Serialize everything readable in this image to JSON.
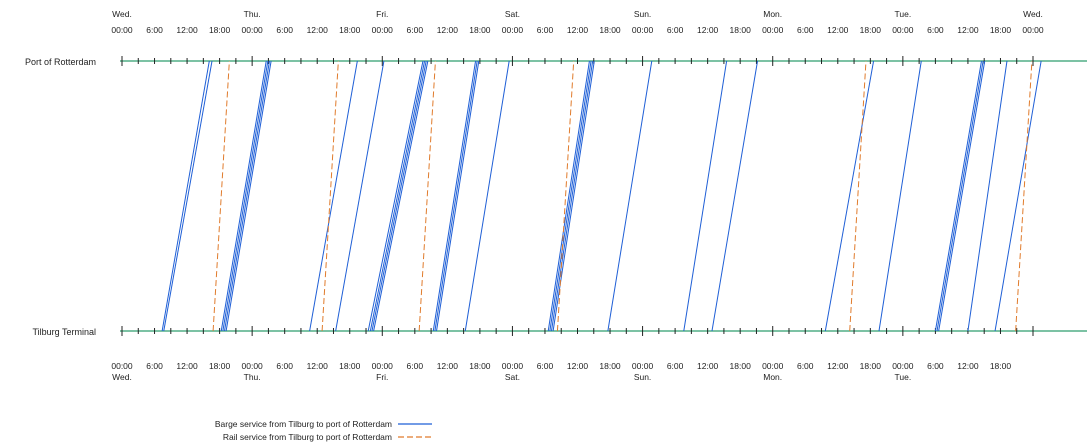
{
  "chart_data": {
    "type": "line",
    "title": "",
    "xlabel": "",
    "ylabel": "",
    "x_unit": "hours",
    "xlim": [
      0,
      168
    ],
    "stations": [
      "Port of Rotterdam",
      "Tilburg Terminal"
    ],
    "top_axis_ticks": [
      {
        "value": 0,
        "time": "00:00",
        "day": "Wed."
      },
      {
        "value": 6,
        "time": "6:00",
        "day": ""
      },
      {
        "value": 12,
        "time": "12:00",
        "day": ""
      },
      {
        "value": 18,
        "time": "18:00",
        "day": ""
      },
      {
        "value": 24,
        "time": "00:00",
        "day": "Thu."
      },
      {
        "value": 30,
        "time": "6:00",
        "day": ""
      },
      {
        "value": 36,
        "time": "12:00",
        "day": ""
      },
      {
        "value": 42,
        "time": "18:00",
        "day": ""
      },
      {
        "value": 48,
        "time": "00:00",
        "day": "Fri."
      },
      {
        "value": 54,
        "time": "6:00",
        "day": ""
      },
      {
        "value": 60,
        "time": "12:00",
        "day": ""
      },
      {
        "value": 66,
        "time": "18:00",
        "day": ""
      },
      {
        "value": 72,
        "time": "00:00",
        "day": "Sat."
      },
      {
        "value": 78,
        "time": "6:00",
        "day": ""
      },
      {
        "value": 84,
        "time": "12:00",
        "day": ""
      },
      {
        "value": 90,
        "time": "18:00",
        "day": ""
      },
      {
        "value": 96,
        "time": "00:00",
        "day": "Sun."
      },
      {
        "value": 102,
        "time": "6:00",
        "day": ""
      },
      {
        "value": 108,
        "time": "12:00",
        "day": ""
      },
      {
        "value": 114,
        "time": "18:00",
        "day": ""
      },
      {
        "value": 120,
        "time": "00:00",
        "day": "Mon."
      },
      {
        "value": 126,
        "time": "6:00",
        "day": ""
      },
      {
        "value": 132,
        "time": "12:00",
        "day": ""
      },
      {
        "value": 138,
        "time": "18:00",
        "day": ""
      },
      {
        "value": 144,
        "time": "00:00",
        "day": "Tue."
      },
      {
        "value": 150,
        "time": "6:00",
        "day": ""
      },
      {
        "value": 156,
        "time": "12:00",
        "day": ""
      },
      {
        "value": 162,
        "time": "18:00",
        "day": ""
      },
      {
        "value": 168,
        "time": "00:00",
        "day": "Wed."
      }
    ],
    "bottom_axis_ticks": [
      {
        "value": 0,
        "time": "00:00",
        "day": "Wed."
      },
      {
        "value": 6,
        "time": "6:00",
        "day": ""
      },
      {
        "value": 12,
        "time": "12:00",
        "day": ""
      },
      {
        "value": 18,
        "time": "18:00",
        "day": ""
      },
      {
        "value": 24,
        "time": "00:00",
        "day": "Thu."
      },
      {
        "value": 30,
        "time": "6:00",
        "day": ""
      },
      {
        "value": 36,
        "time": "12:00",
        "day": ""
      },
      {
        "value": 42,
        "time": "18:00",
        "day": ""
      },
      {
        "value": 48,
        "time": "00:00",
        "day": "Fri."
      },
      {
        "value": 54,
        "time": "6:00",
        "day": ""
      },
      {
        "value": 60,
        "time": "12:00",
        "day": ""
      },
      {
        "value": 66,
        "time": "18:00",
        "day": ""
      },
      {
        "value": 72,
        "time": "00:00",
        "day": "Sat."
      },
      {
        "value": 78,
        "time": "6:00",
        "day": ""
      },
      {
        "value": 84,
        "time": "12:00",
        "day": ""
      },
      {
        "value": 90,
        "time": "18:00",
        "day": ""
      },
      {
        "value": 96,
        "time": "00:00",
        "day": "Sun."
      },
      {
        "value": 102,
        "time": "6:00",
        "day": ""
      },
      {
        "value": 108,
        "time": "12:00",
        "day": ""
      },
      {
        "value": 114,
        "time": "18:00",
        "day": ""
      },
      {
        "value": 120,
        "time": "00:00",
        "day": "Mon."
      },
      {
        "value": 126,
        "time": "6:00",
        "day": ""
      },
      {
        "value": 132,
        "time": "12:00",
        "day": ""
      },
      {
        "value": 138,
        "time": "18:00",
        "day": ""
      },
      {
        "value": 144,
        "time": "00:00",
        "day": "Tue."
      },
      {
        "value": 150,
        "time": "6:00",
        "day": ""
      },
      {
        "value": 156,
        "time": "12:00",
        "day": ""
      },
      {
        "value": 162,
        "time": "18:00",
        "day": ""
      }
    ],
    "series": [
      {
        "name": "Barge service from Tilburg to port of Rotterdam",
        "color": "#1f5fd6",
        "style": "solid",
        "trips": [
          {
            "depart": 7.4,
            "arrive": 16.1
          },
          {
            "depart": 7.7,
            "arrive": 16.6
          },
          {
            "depart": 18.3,
            "arrive": 26.6
          },
          {
            "depart": 18.6,
            "arrive": 26.9
          },
          {
            "depart": 18.9,
            "arrive": 27.2
          },
          {
            "depart": 19.2,
            "arrive": 27.5
          },
          {
            "depart": 34.6,
            "arrive": 43.4
          },
          {
            "depart": 39.4,
            "arrive": 48.3
          },
          {
            "depart": 45.4,
            "arrive": 55.5
          },
          {
            "depart": 45.8,
            "arrive": 55.8
          },
          {
            "depart": 46.1,
            "arrive": 56.1
          },
          {
            "depart": 46.4,
            "arrive": 56.4
          },
          {
            "depart": 57.4,
            "arrive": 65.2
          },
          {
            "depart": 57.7,
            "arrive": 65.5
          },
          {
            "depart": 58.0,
            "arrive": 65.8
          },
          {
            "depart": 63.3,
            "arrive": 71.4
          },
          {
            "depart": 78.6,
            "arrive": 86.2
          },
          {
            "depart": 78.9,
            "arrive": 86.5
          },
          {
            "depart": 79.2,
            "arrive": 86.8
          },
          {
            "depart": 79.5,
            "arrive": 87.1
          },
          {
            "depart": 89.6,
            "arrive": 97.7
          },
          {
            "depart": 103.6,
            "arrive": 111.5
          },
          {
            "depart": 108.8,
            "arrive": 117.2
          },
          {
            "depart": 129.7,
            "arrive": 138.6
          },
          {
            "depart": 139.6,
            "arrive": 147.4
          },
          {
            "depart": 150.0,
            "arrive": 158.5
          },
          {
            "depart": 150.3,
            "arrive": 158.8
          },
          {
            "depart": 150.6,
            "arrive": 159.1
          },
          {
            "depart": 156.0,
            "arrive": 163.2
          },
          {
            "depart": 161.0,
            "arrive": 169.5
          }
        ]
      },
      {
        "name": "Rail service from Tilburg to port of Rotterdam",
        "color": "#e07b2c",
        "style": "dashed",
        "trips": [
          {
            "depart": 16.8,
            "arrive": 19.8
          },
          {
            "depart": 36.9,
            "arrive": 39.9
          },
          {
            "depart": 54.8,
            "arrive": 57.8
          },
          {
            "depart": 80.3,
            "arrive": 83.3
          },
          {
            "depart": 134.2,
            "arrive": 137.2
          },
          {
            "depart": 164.8,
            "arrive": 167.8
          }
        ]
      }
    ],
    "grid": false,
    "legend": "bottom-left"
  }
}
